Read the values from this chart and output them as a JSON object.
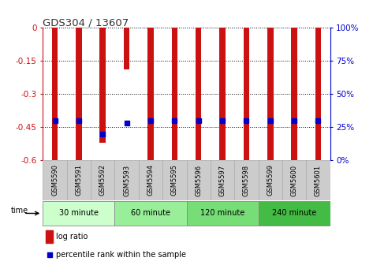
{
  "title": "GDS304 / 13607",
  "samples": [
    "GSM5590",
    "GSM5591",
    "GSM5592",
    "GSM5593",
    "GSM5594",
    "GSM5595",
    "GSM5596",
    "GSM5597",
    "GSM5598",
    "GSM5599",
    "GSM5600",
    "GSM5601"
  ],
  "log_ratio": [
    -0.6,
    -0.6,
    -0.52,
    -0.19,
    -0.6,
    -0.6,
    -0.6,
    -0.6,
    -0.6,
    -0.6,
    -0.6,
    -0.6
  ],
  "percentile_rank": [
    0.3,
    0.3,
    0.2,
    0.28,
    0.3,
    0.3,
    0.3,
    0.3,
    0.3,
    0.3,
    0.3,
    0.3
  ],
  "ylim": [
    -0.6,
    0.0
  ],
  "yticks": [
    0,
    -0.15,
    -0.3,
    -0.45,
    -0.6
  ],
  "right_yticks": [
    100,
    75,
    50,
    25,
    0
  ],
  "groups": [
    {
      "label": "30 minute",
      "start": 0,
      "end": 3,
      "color": "#ccffcc"
    },
    {
      "label": "60 minute",
      "start": 3,
      "end": 6,
      "color": "#99ee99"
    },
    {
      "label": "120 minute",
      "start": 6,
      "end": 9,
      "color": "#77dd77"
    },
    {
      "label": "240 minute",
      "start": 9,
      "end": 12,
      "color": "#44bb44"
    }
  ],
  "bar_color": "#cc1111",
  "blue_color": "#0000cc",
  "bar_width": 0.25,
  "blue_size": 4,
  "title_color": "#333333",
  "left_axis_color": "#cc1111",
  "right_axis_color": "#0000cc",
  "bg_color": "#ffffff",
  "tick_bg": "#cccccc",
  "grid_color": "#000000",
  "legend_bar_label": "log ratio",
  "legend_blue_label": "percentile rank within the sample",
  "time_label": "time"
}
